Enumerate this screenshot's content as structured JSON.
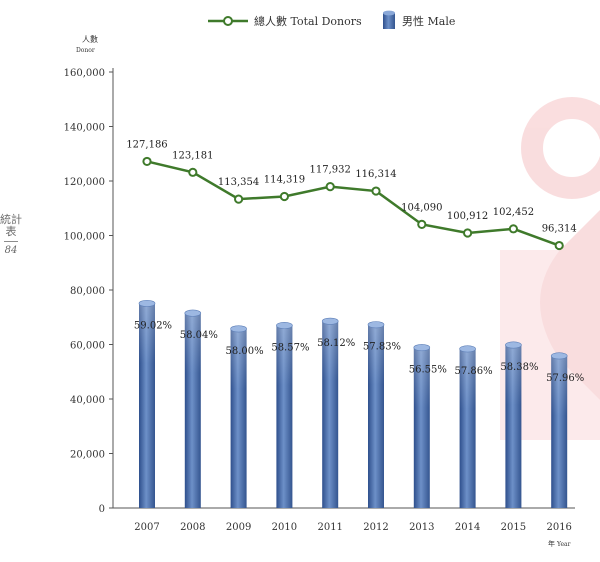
{
  "side": {
    "section": "統計表",
    "page_number": "84"
  },
  "chart_data": {
    "type": "bar",
    "categories": [
      "2007",
      "2008",
      "2009",
      "2010",
      "2011",
      "2012",
      "2013",
      "2014",
      "2015",
      "2016"
    ],
    "series": [
      {
        "name": "總人數 Total Donors",
        "kind": "line",
        "color": "#3f7a2b",
        "values": [
          127186,
          123181,
          113354,
          114319,
          117932,
          116314,
          104090,
          100912,
          102452,
          96314
        ],
        "labels": [
          "127,186",
          "123,181",
          "113,354",
          "114,319",
          "117,932",
          "116,314",
          "104,090",
          "100,912",
          "102,452",
          "96,314"
        ]
      },
      {
        "name": "男性 Male",
        "kind": "bar",
        "color": "#4a6fae",
        "values": [
          75066,
          71495,
          65745,
          66956,
          68542,
          67264,
          58863,
          58388,
          59812,
          55823
        ],
        "labels": [
          "59.02%",
          "58.04%",
          "58.00%",
          "58.57%",
          "58.12%",
          "57.83%",
          "56.55%",
          "57.86%",
          "58.38%",
          "57.96%"
        ]
      }
    ],
    "ylabel": "人數",
    "ylabel_sub": "Donor",
    "xlabel": "年",
    "xlabel_sub": "Year",
    "ylim": [
      0,
      160000
    ],
    "yticks": [
      0,
      20000,
      40000,
      60000,
      80000,
      100000,
      120000,
      140000,
      160000
    ],
    "ytick_labels": [
      "0",
      "20,000",
      "40,000",
      "60,000",
      "80,000",
      "100,000",
      "120,000",
      "140,000",
      "160,000"
    ],
    "grid": false,
    "legend_position": "top-center"
  }
}
